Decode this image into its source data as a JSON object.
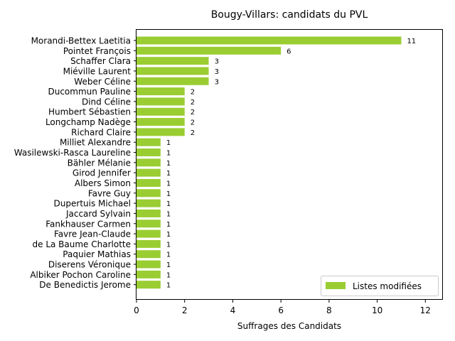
{
  "chart_data": {
    "type": "bar",
    "orientation": "horizontal",
    "title": "Bougy-Villars: candidats du PVL",
    "xlabel": "Suffrages des Candidats",
    "ylabel": "",
    "xlim": [
      0,
      12.7
    ],
    "xticks": [
      0,
      2,
      4,
      6,
      8,
      10,
      12
    ],
    "grid": false,
    "legend_position": "lower-right",
    "bar_color": "#9acd32",
    "series": [
      {
        "name": "Listes modifiées",
        "categories": [
          "Morandi-Bettex Laetitia",
          "Pointet François",
          "Schaffer Clara",
          "Miéville Laurent",
          "Weber Céline",
          "Ducommun Pauline",
          "Dind Céline",
          "Humbert Sébastien",
          "Longchamp Nadège",
          "Richard Claire",
          "Milliet Alexandre",
          "Wasilewski-Rasca Laureline",
          "Bähler Mélanie",
          "Girod Jennifer",
          "Albers Simon",
          "Favre Guy",
          "Dupertuis Michael",
          "Jaccard Sylvain",
          "Fankhauser Carmen",
          "Favre Jean-Claude",
          "de La Baume Charlotte",
          "Paquier Mathias",
          "Diserens Véronique",
          "Albiker Pochon Caroline",
          "De Benedictis Jerome"
        ],
        "values": [
          11,
          6,
          3,
          3,
          3,
          2,
          2,
          2,
          2,
          2,
          1,
          1,
          1,
          1,
          1,
          1,
          1,
          1,
          1,
          1,
          1,
          1,
          1,
          1,
          1
        ]
      }
    ]
  }
}
